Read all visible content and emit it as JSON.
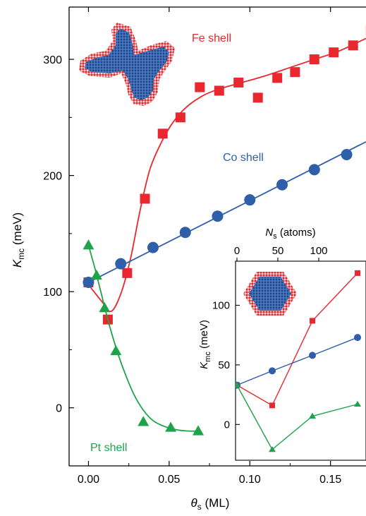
{
  "chart_data": [
    {
      "type": "scatter",
      "xlabel_sym": "θ",
      "xlabel_sub": "s",
      "xlabel_unit": " (ML)",
      "ylabel_sym": "K",
      "ylabel_sub": "mc",
      "ylabel_unit": " (meV)",
      "xlim": [
        -0.012,
        0.172
      ],
      "ylim": [
        -50,
        345
      ],
      "xticks": [
        0.0,
        0.05,
        0.1,
        0.15
      ],
      "xtick_labels": [
        "0.00",
        "0.05",
        "0.10",
        "0.15"
      ],
      "yticks": [
        0,
        100,
        200,
        300
      ],
      "ytick_labels": [
        "0",
        "100",
        "200",
        "300"
      ],
      "grid": false,
      "series": [
        {
          "name": "Fe shell",
          "color": "#e8282e",
          "marker": "square",
          "points": [
            [
              0.0,
              108
            ],
            [
              0.012,
              76
            ],
            [
              0.024,
              116
            ],
            [
              0.035,
              180
            ],
            [
              0.046,
              236
            ],
            [
              0.057,
              250
            ],
            [
              0.069,
              276
            ],
            [
              0.081,
              273
            ],
            [
              0.093,
              280
            ],
            [
              0.105,
              267
            ],
            [
              0.117,
              284
            ],
            [
              0.128,
              289
            ],
            [
              0.14,
              300
            ],
            [
              0.152,
              306
            ],
            [
              0.164,
              312
            ],
            [
              0.175,
              325
            ]
          ],
          "curve": [
            [
              0.0,
              106
            ],
            [
              0.008,
              92
            ],
            [
              0.014,
              83
            ],
            [
              0.02,
              98
            ],
            [
              0.026,
              128
            ],
            [
              0.032,
              170
            ],
            [
              0.038,
              205
            ],
            [
              0.045,
              228
            ],
            [
              0.052,
              245
            ],
            [
              0.06,
              258
            ],
            [
              0.07,
              268
            ],
            [
              0.08,
              274
            ],
            [
              0.095,
              280
            ],
            [
              0.11,
              286
            ],
            [
              0.125,
              293
            ],
            [
              0.14,
              300
            ],
            [
              0.155,
              307
            ],
            [
              0.172,
              318
            ]
          ]
        },
        {
          "name": "Co shell",
          "color": "#2e5fa8",
          "marker": "circle",
          "points": [
            [
              0.0,
              108
            ],
            [
              0.02,
              124
            ],
            [
              0.04,
              138
            ],
            [
              0.06,
              151
            ],
            [
              0.08,
              165
            ],
            [
              0.1,
              179
            ],
            [
              0.12,
              192
            ],
            [
              0.14,
              205
            ],
            [
              0.16,
              218
            ]
          ],
          "curve": [
            [
              0.0,
              108
            ],
            [
              0.172,
              229
            ]
          ]
        },
        {
          "name": "Pt shell",
          "color": "#1fa34a",
          "marker": "triangle",
          "points": [
            [
              0.0,
              140
            ],
            [
              0.005,
              114
            ],
            [
              0.01,
              86
            ],
            [
              0.017,
              49
            ],
            [
              0.034,
              -12
            ],
            [
              0.051,
              -17
            ],
            [
              0.068,
              -20
            ]
          ],
          "curve": [
            [
              0.0,
              140
            ],
            [
              0.004,
              120
            ],
            [
              0.008,
              98
            ],
            [
              0.012,
              76
            ],
            [
              0.017,
              52
            ],
            [
              0.022,
              32
            ],
            [
              0.028,
              12
            ],
            [
              0.034,
              -2
            ],
            [
              0.04,
              -11
            ],
            [
              0.047,
              -16
            ],
            [
              0.055,
              -19
            ],
            [
              0.062,
              -20
            ],
            [
              0.068,
              -20
            ]
          ]
        }
      ]
    },
    {
      "type": "line",
      "role": "inset",
      "top_label_sym": "N",
      "top_label_sub": "s",
      "top_label_unit": " (atoms)",
      "top_ticks": [
        "0",
        "50",
        "100"
      ],
      "ylabel_sym": "K",
      "ylabel_sub": "mc",
      "ylabel_unit": " (meV)",
      "ylim": [
        -30,
        137
      ],
      "yticks": [
        0,
        50,
        100
      ],
      "ytick_labels": [
        "0",
        "50",
        "100"
      ],
      "series": [
        {
          "name": "Fe",
          "color": "#e8282e",
          "marker": "square",
          "values": [
            33,
            16,
            87,
            127
          ]
        },
        {
          "name": "Co",
          "color": "#2e5fa8",
          "marker": "circle",
          "values": [
            33,
            45,
            58,
            73
          ]
        },
        {
          "name": "Pt",
          "color": "#1fa34a",
          "marker": "triangle",
          "values": [
            33,
            -21,
            7,
            17
          ]
        }
      ]
    }
  ],
  "labels": {
    "fe": "Fe shell",
    "co": "Co shell",
    "pt": "Pt shell"
  },
  "colors": {
    "fe": "#e8282e",
    "co": "#2e5fa8",
    "pt": "#1fa34a",
    "axis": "#000000"
  }
}
